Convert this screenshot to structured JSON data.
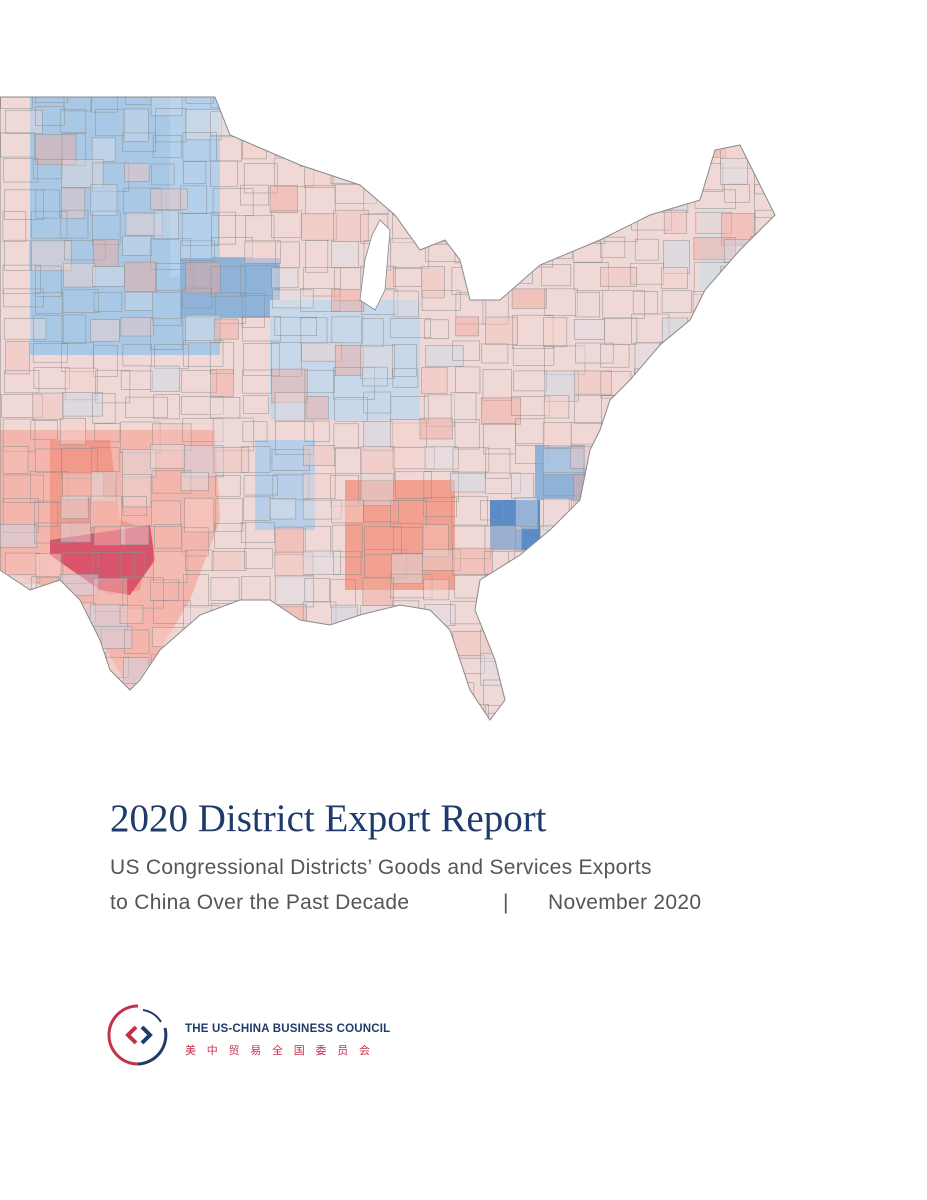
{
  "title": "2020 District Export Report",
  "subtitle": {
    "line1": "US Congressional Districts’ Goods and Services Exports",
    "line2": "to China Over the Past Decade",
    "separator": "|",
    "date": "November 2020"
  },
  "organization": {
    "name": "THE US-CHINA BUSINESS COUNCIL",
    "chinese_name": "美 中 贸 易 全 国 委 员 会"
  }
}
